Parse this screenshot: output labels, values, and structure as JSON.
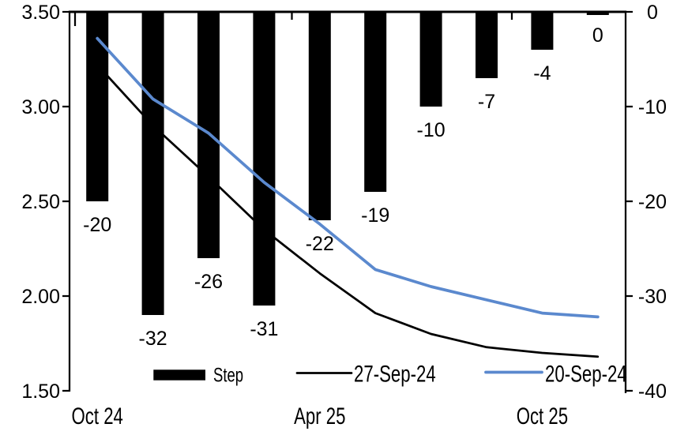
{
  "chart_data": {
    "type": "combo-bar-line",
    "title": "",
    "background": "#FFFFFF",
    "grid": false,
    "x_axis": {
      "num_categories": 10,
      "tick_labels": [
        {
          "label": "Oct 24",
          "category_index": 0
        },
        {
          "label": "Apr 25",
          "category_index": 4
        },
        {
          "label": "Oct 25",
          "category_index": 8
        }
      ]
    },
    "left_axis": {
      "range": [
        1.5,
        3.5
      ],
      "tick_values": [
        3.5,
        3.0,
        2.5,
        2.0,
        1.5
      ],
      "tick_labels": [
        "3.50",
        "3.00",
        "2.50",
        "2.00",
        "1.50"
      ]
    },
    "right_axis": {
      "range": [
        -40,
        0
      ],
      "tick_values": [
        0,
        -10,
        -20,
        -30,
        -40
      ],
      "tick_labels": [
        "0",
        "-10",
        "-20",
        "-30",
        "-40"
      ]
    },
    "bar_series": {
      "name": "Step",
      "axis": "right",
      "color": "#000000",
      "values": [
        -20,
        -32,
        -26,
        -31,
        -22,
        -19,
        -10,
        -7,
        -4,
        0
      ],
      "data_labels": [
        "-20",
        "-32",
        "-26",
        "-31",
        "-22",
        "-19",
        "-10",
        "-7",
        "-4",
        "0"
      ]
    },
    "line_series": [
      {
        "name": "27-Sep-24",
        "axis": "left",
        "color": "#000000",
        "values": [
          3.22,
          2.9,
          2.63,
          2.35,
          2.12,
          1.91,
          1.8,
          1.73,
          1.7,
          1.68
        ]
      },
      {
        "name": "20-Sep-24",
        "axis": "left",
        "color": "#5B89CE",
        "values": [
          3.36,
          3.04,
          2.86,
          2.6,
          2.38,
          2.14,
          2.05,
          1.98,
          1.91,
          1.89
        ]
      }
    ],
    "legend": {
      "position": "bottom",
      "items": [
        {
          "label": "Step",
          "swatch": "bar",
          "color": "#000000"
        },
        {
          "label": "27-Sep-24",
          "swatch": "line",
          "color": "#000000"
        },
        {
          "label": "20-Sep-24",
          "swatch": "line",
          "color": "#5B89CE"
        }
      ]
    }
  }
}
